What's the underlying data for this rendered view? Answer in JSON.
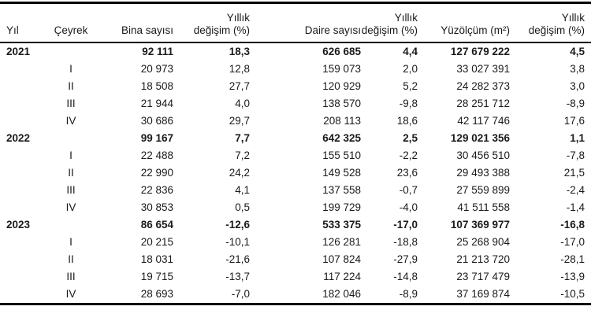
{
  "chart_data": {
    "type": "table",
    "columns": [
      {
        "key": "yil",
        "label": "Yıl",
        "lines": [
          "Yıl"
        ]
      },
      {
        "key": "ceyrek",
        "label": "Çeyrek",
        "lines": [
          "Çeyrek"
        ]
      },
      {
        "key": "bina_sayisi",
        "label": "Bina sayısı",
        "lines": [
          "Bina sayısı"
        ]
      },
      {
        "key": "bina_yillik_degisim",
        "label": "Yıllık değişim (%)",
        "lines": [
          "Yıllık",
          "değişim (%)"
        ]
      },
      {
        "key": "daire_sayisi",
        "label": "Daire sayısı",
        "lines": [
          "Daire sayısı"
        ]
      },
      {
        "key": "daire_yillik_degisim",
        "label": "Yıllık değişim (%)",
        "lines": [
          "Yıllık",
          "değişim (%)"
        ]
      },
      {
        "key": "yuzolcum",
        "label": "Yüzölçüm (m²)",
        "lines": [
          "Yüzölçüm (m²)"
        ]
      },
      {
        "key": "yuzolcum_yillik_degisim",
        "label": "Yıllık değişim (%)",
        "lines": [
          "Yıllık",
          "değişim (%)"
        ]
      }
    ],
    "rows": [
      {
        "yil": "2021",
        "ceyrek": "",
        "bold": true,
        "bina_sayisi": "92 111",
        "bina_yillik_degisim": "18,3",
        "daire_sayisi": "626 685",
        "daire_yillik_degisim": "4,4",
        "yuzolcum": "127 679 222",
        "yuzolcum_yillik_degisim": "4,5"
      },
      {
        "yil": "",
        "ceyrek": "I",
        "bold": false,
        "bina_sayisi": "20 973",
        "bina_yillik_degisim": "12,8",
        "daire_sayisi": "159 073",
        "daire_yillik_degisim": "2,0",
        "yuzolcum": "33 027 391",
        "yuzolcum_yillik_degisim": "3,8"
      },
      {
        "yil": "",
        "ceyrek": "II",
        "bold": false,
        "bina_sayisi": "18 508",
        "bina_yillik_degisim": "27,7",
        "daire_sayisi": "120 929",
        "daire_yillik_degisim": "5,2",
        "yuzolcum": "24 282 373",
        "yuzolcum_yillik_degisim": "3,0"
      },
      {
        "yil": "",
        "ceyrek": "III",
        "bold": false,
        "bina_sayisi": "21 944",
        "bina_yillik_degisim": "4,0",
        "daire_sayisi": "138 570",
        "daire_yillik_degisim": "-9,8",
        "yuzolcum": "28 251 712",
        "yuzolcum_yillik_degisim": "-8,9"
      },
      {
        "yil": "",
        "ceyrek": "IV",
        "bold": false,
        "bina_sayisi": "30 686",
        "bina_yillik_degisim": "29,7",
        "daire_sayisi": "208 113",
        "daire_yillik_degisim": "18,6",
        "yuzolcum": "42 117 746",
        "yuzolcum_yillik_degisim": "17,6"
      },
      {
        "yil": "2022",
        "ceyrek": "",
        "bold": true,
        "bina_sayisi": "99 167",
        "bina_yillik_degisim": "7,7",
        "daire_sayisi": "642 325",
        "daire_yillik_degisim": "2,5",
        "yuzolcum": "129 021 356",
        "yuzolcum_yillik_degisim": "1,1"
      },
      {
        "yil": "",
        "ceyrek": "I",
        "bold": false,
        "bina_sayisi": "22 488",
        "bina_yillik_degisim": "7,2",
        "daire_sayisi": "155 510",
        "daire_yillik_degisim": "-2,2",
        "yuzolcum": "30 456 510",
        "yuzolcum_yillik_degisim": "-7,8"
      },
      {
        "yil": "",
        "ceyrek": "II",
        "bold": false,
        "bina_sayisi": "22 990",
        "bina_yillik_degisim": "24,2",
        "daire_sayisi": "149 528",
        "daire_yillik_degisim": "23,6",
        "yuzolcum": "29 493 388",
        "yuzolcum_yillik_degisim": "21,5"
      },
      {
        "yil": "",
        "ceyrek": "III",
        "bold": false,
        "bina_sayisi": "22 836",
        "bina_yillik_degisim": "4,1",
        "daire_sayisi": "137 558",
        "daire_yillik_degisim": "-0,7",
        "yuzolcum": "27 559 899",
        "yuzolcum_yillik_degisim": "-2,4"
      },
      {
        "yil": "",
        "ceyrek": "IV",
        "bold": false,
        "bina_sayisi": "30 853",
        "bina_yillik_degisim": "0,5",
        "daire_sayisi": "199 729",
        "daire_yillik_degisim": "-4,0",
        "yuzolcum": "41 511 558",
        "yuzolcum_yillik_degisim": "-1,4"
      },
      {
        "yil": "2023",
        "ceyrek": "",
        "bold": true,
        "bina_sayisi": "86 654",
        "bina_yillik_degisim": "-12,6",
        "daire_sayisi": "533 375",
        "daire_yillik_degisim": "-17,0",
        "yuzolcum": "107 369 977",
        "yuzolcum_yillik_degisim": "-16,8"
      },
      {
        "yil": "",
        "ceyrek": "I",
        "bold": false,
        "bina_sayisi": "20 215",
        "bina_yillik_degisim": "-10,1",
        "daire_sayisi": "126 281",
        "daire_yillik_degisim": "-18,8",
        "yuzolcum": "25 268 904",
        "yuzolcum_yillik_degisim": "-17,0"
      },
      {
        "yil": "",
        "ceyrek": "II",
        "bold": false,
        "bina_sayisi": "18 031",
        "bina_yillik_degisim": "-21,6",
        "daire_sayisi": "107 824",
        "daire_yillik_degisim": "-27,9",
        "yuzolcum": "21 213 720",
        "yuzolcum_yillik_degisim": "-28,1"
      },
      {
        "yil": "",
        "ceyrek": "III",
        "bold": false,
        "bina_sayisi": "19 715",
        "bina_yillik_degisim": "-13,7",
        "daire_sayisi": "117 224",
        "daire_yillik_degisim": "-14,8",
        "yuzolcum": "23 717 479",
        "yuzolcum_yillik_degisim": "-13,9"
      },
      {
        "yil": "",
        "ceyrek": "IV",
        "bold": false,
        "bina_sayisi": "28 693",
        "bina_yillik_degisim": "-7,0",
        "daire_sayisi": "182 046",
        "daire_yillik_degisim": "-8,9",
        "yuzolcum": "37 169 874",
        "yuzolcum_yillik_degisim": "-10,5"
      }
    ]
  }
}
